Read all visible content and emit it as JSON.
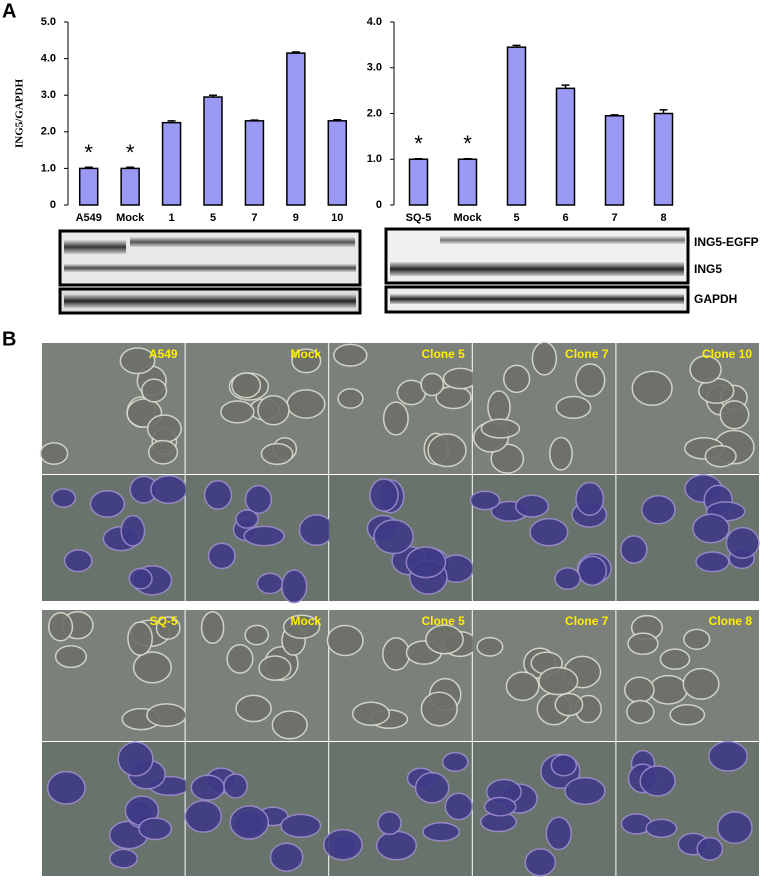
{
  "panels": [
    "A",
    "B"
  ],
  "chart_data": [
    {
      "type": "bar",
      "y_label": "ING5/GAPDH",
      "categories": [
        "A549",
        "Mock",
        "1",
        "5",
        "7",
        "9",
        "10"
      ],
      "values": [
        1.0,
        1.0,
        2.25,
        2.95,
        2.3,
        4.15,
        2.3
      ],
      "errors": [
        0.03,
        0.03,
        0.05,
        0.05,
        0.02,
        0.03,
        0.03
      ],
      "annotations": [
        "*",
        "*"
      ],
      "color": "#9a9af5",
      "ylim": [
        0,
        5
      ],
      "yticks": [
        0,
        {
          "value": 1,
          "label": "1.0"
        },
        {
          "value": 2,
          "label": "2.0"
        },
        {
          "value": 3,
          "label": "3.0"
        },
        {
          "value": 4,
          "label": "4.0"
        },
        {
          "value": 5,
          "label": "5.0"
        }
      ]
    },
    {
      "type": "bar",
      "categories": [
        "SQ-5",
        "Mock",
        "5",
        "6",
        "7",
        "8"
      ],
      "values": [
        1.0,
        1.0,
        3.45,
        2.55,
        1.95,
        2.0
      ],
      "errors": [
        0.01,
        0.01,
        0.04,
        0.07,
        0.02,
        0.08
      ],
      "annotations": [
        "*",
        "*"
      ],
      "color": "#9a9af5",
      "ylim": [
        0,
        4
      ],
      "yticks": [
        0,
        {
          "value": 1,
          "label": "1.0"
        },
        {
          "value": 2,
          "label": "2.0"
        },
        {
          "value": 3,
          "label": "3.0"
        },
        {
          "value": 4,
          "label": "4.0"
        }
      ]
    }
  ],
  "blot_labels": [
    "ING5-EGFP",
    "ING5",
    "GAPDH"
  ],
  "images": {
    "top": [
      "A549",
      "Mock",
      "Clone 5",
      "Clone 7",
      "Clone 10"
    ],
    "bottom": [
      "SQ-5",
      "Mock",
      "Clone 5",
      "Clone 7",
      "Clone 8"
    ]
  }
}
